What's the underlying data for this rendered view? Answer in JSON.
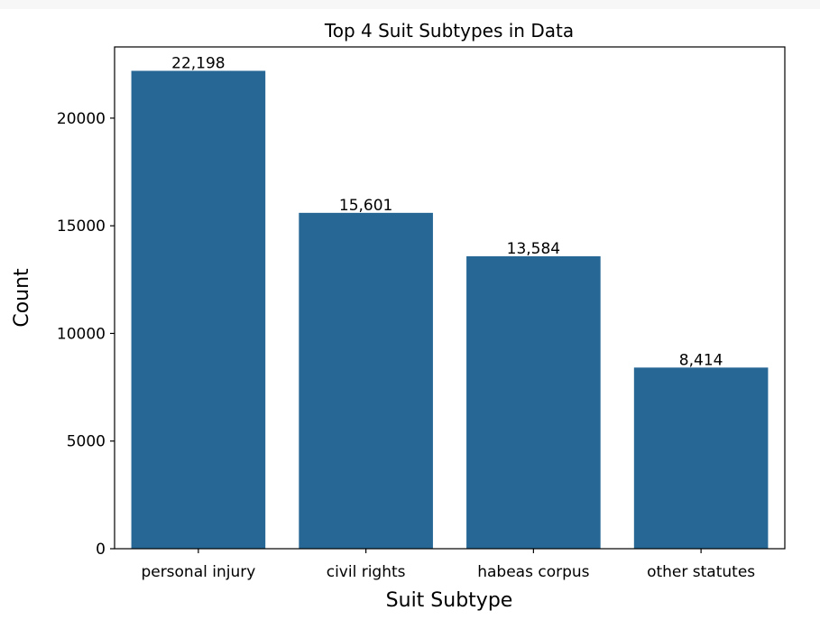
{
  "chart_data": {
    "type": "bar",
    "title": "Top 4 Suit Subtypes in Data",
    "xlabel": "Suit Subtype",
    "ylabel": "Count",
    "categories": [
      "personal injury",
      "civil rights",
      "habeas corpus",
      "other statutes"
    ],
    "values": [
      22198,
      15601,
      13584,
      8414
    ],
    "data_labels": [
      "22,198",
      "15,601",
      "13,584",
      "8,414"
    ],
    "yticks": [
      0,
      5000,
      10000,
      15000,
      20000
    ],
    "ytick_labels": [
      "0",
      "5000",
      "10000",
      "15000",
      "20000"
    ],
    "ylim": [
      0,
      23308
    ],
    "grid": false,
    "bar_color": "#266796"
  }
}
